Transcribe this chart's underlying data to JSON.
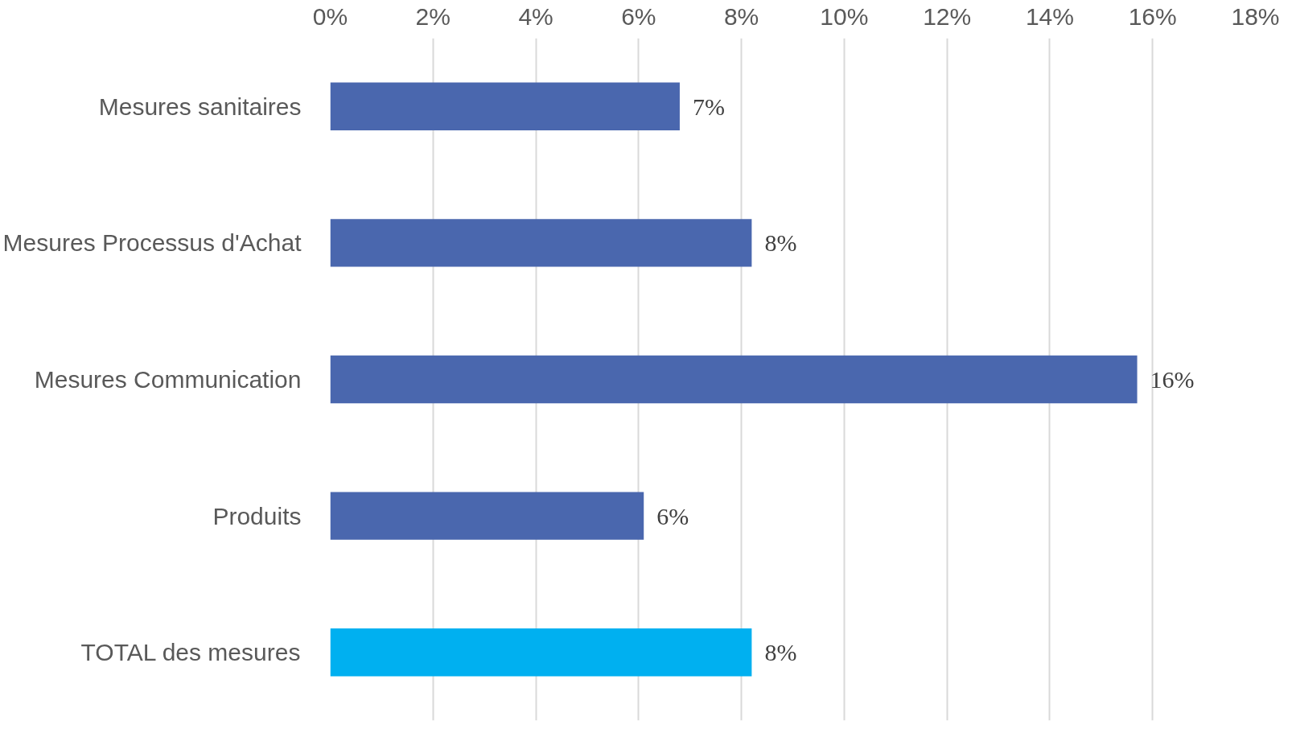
{
  "chart_data": {
    "type": "bar",
    "orientation": "horizontal",
    "categories": [
      "Mesures sanitaires",
      "Mesures Processus d'Achat",
      "Mesures Communication",
      "Produits",
      "TOTAL des mesures"
    ],
    "values": [
      6.8,
      8.2,
      15.7,
      6.1,
      8.2
    ],
    "colors": [
      "#4a67ae",
      "#4a67ae",
      "#4a67ae",
      "#4a67ae",
      "#00b0f0"
    ],
    "value_labels": [
      "7%",
      "8%",
      "16%",
      "6%",
      "8%"
    ],
    "xlim": [
      0,
      18
    ],
    "xticks": [
      {
        "value": 0,
        "label": "0%"
      },
      {
        "value": 2,
        "label": "2%"
      },
      {
        "value": 4,
        "label": "4%"
      },
      {
        "value": 6,
        "label": "6%"
      },
      {
        "value": 8,
        "label": "8%"
      },
      {
        "value": 10,
        "label": "10%"
      },
      {
        "value": 12,
        "label": "12%"
      },
      {
        "value": 14,
        "label": "14%"
      },
      {
        "value": 16,
        "label": "16%"
      },
      {
        "value": 18,
        "label": "18%"
      }
    ],
    "grid": "x"
  }
}
